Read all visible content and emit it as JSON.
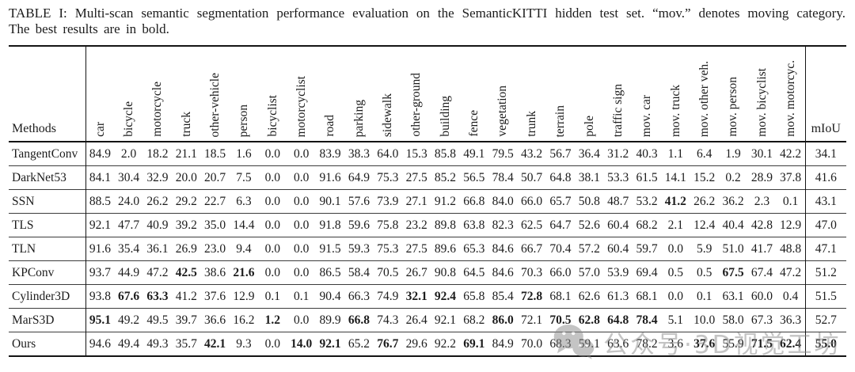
{
  "caption": {
    "line1": "TABLE I: Multi-scan semantic segmentation performance evaluation on the SemanticKITTI hidden test set. “mov.” denotes moving category.",
    "line2": "The best results are in bold."
  },
  "table": {
    "methods_header": "Methods",
    "miou_header": "mIoU",
    "columns": [
      "car",
      "bicycle",
      "motorcycle",
      "truck",
      "other-vehicle",
      "person",
      "bicyclist",
      "motorcyclist",
      "road",
      "parking",
      "sidewalk",
      "other-ground",
      "building",
      "fence",
      "vegetation",
      "trunk",
      "terrain",
      "pole",
      "traffic sign",
      "mov. car",
      "mov. truck",
      "mov. other veh.",
      "mov. person",
      "mov. bicyclist",
      "mov. motorcyc."
    ],
    "rows": [
      {
        "method": "TangentConv",
        "values": [
          "84.9",
          "2.0",
          "18.2",
          "21.1",
          "18.5",
          "1.6",
          "0.0",
          "0.0",
          "83.9",
          "38.3",
          "64.0",
          "15.3",
          "85.8",
          "49.1",
          "79.5",
          "43.2",
          "56.7",
          "36.4",
          "31.2",
          "40.3",
          "1.1",
          "6.4",
          "1.9",
          "30.1",
          "42.2"
        ],
        "bold": [],
        "miou": "34.1",
        "miou_bold": false
      },
      {
        "method": "DarkNet53",
        "values": [
          "84.1",
          "30.4",
          "32.9",
          "20.0",
          "20.7",
          "7.5",
          "0.0",
          "0.0",
          "91.6",
          "64.9",
          "75.3",
          "27.5",
          "85.2",
          "56.5",
          "78.4",
          "50.7",
          "64.8",
          "38.1",
          "53.3",
          "61.5",
          "14.1",
          "15.2",
          "0.2",
          "28.9",
          "37.8"
        ],
        "bold": [],
        "miou": "41.6",
        "miou_bold": false
      },
      {
        "method": "SSN",
        "values": [
          "88.5",
          "24.0",
          "26.2",
          "29.2",
          "22.7",
          "6.3",
          "0.0",
          "0.0",
          "90.1",
          "57.6",
          "73.9",
          "27.1",
          "91.2",
          "66.8",
          "84.0",
          "66.0",
          "65.7",
          "50.8",
          "48.7",
          "53.2",
          "41.2",
          "26.2",
          "36.2",
          "2.3",
          "0.1"
        ],
        "bold": [
          20
        ],
        "miou": "43.1",
        "miou_bold": false
      },
      {
        "method": "TLS",
        "values": [
          "92.1",
          "47.7",
          "40.9",
          "39.2",
          "35.0",
          "14.4",
          "0.0",
          "0.0",
          "91.8",
          "59.6",
          "75.8",
          "23.2",
          "89.8",
          "63.8",
          "82.3",
          "62.5",
          "64.7",
          "52.6",
          "60.4",
          "68.2",
          "2.1",
          "12.4",
          "40.4",
          "42.8",
          "12.9"
        ],
        "bold": [],
        "miou": "47.0",
        "miou_bold": false
      },
      {
        "method": "TLN",
        "values": [
          "91.6",
          "35.4",
          "36.1",
          "26.9",
          "23.0",
          "9.4",
          "0.0",
          "0.0",
          "91.5",
          "59.3",
          "75.3",
          "27.5",
          "89.6",
          "65.3",
          "84.6",
          "66.7",
          "70.4",
          "57.2",
          "60.4",
          "59.7",
          "0.0",
          "5.9",
          "51.0",
          "41.7",
          "48.8"
        ],
        "bold": [],
        "miou": "47.1",
        "miou_bold": false
      },
      {
        "method": "KPConv",
        "values": [
          "93.7",
          "44.9",
          "47.2",
          "42.5",
          "38.6",
          "21.6",
          "0.0",
          "0.0",
          "86.5",
          "58.4",
          "70.5",
          "26.7",
          "90.8",
          "64.5",
          "84.6",
          "70.3",
          "66.0",
          "57.0",
          "53.9",
          "69.4",
          "0.5",
          "0.5",
          "67.5",
          "67.4",
          "47.2"
        ],
        "bold": [
          3,
          5,
          22
        ],
        "miou": "51.2",
        "miou_bold": false
      },
      {
        "method": "Cylinder3D",
        "values": [
          "93.8",
          "67.6",
          "63.3",
          "41.2",
          "37.6",
          "12.9",
          "0.1",
          "0.1",
          "90.4",
          "66.3",
          "74.9",
          "32.1",
          "92.4",
          "65.8",
          "85.4",
          "72.8",
          "68.1",
          "62.6",
          "61.3",
          "68.1",
          "0.0",
          "0.1",
          "63.1",
          "60.0",
          "0.4"
        ],
        "bold": [
          1,
          2,
          11,
          12,
          15
        ],
        "miou": "51.5",
        "miou_bold": false
      },
      {
        "method": "MarS3D",
        "values": [
          "95.1",
          "49.2",
          "49.5",
          "39.7",
          "36.6",
          "16.2",
          "1.2",
          "0.0",
          "89.9",
          "66.8",
          "74.3",
          "26.4",
          "92.1",
          "68.2",
          "86.0",
          "72.1",
          "70.5",
          "62.8",
          "64.8",
          "78.4",
          "5.1",
          "10.0",
          "58.0",
          "67.3",
          "36.3"
        ],
        "bold": [
          0,
          6,
          9,
          14,
          16,
          17,
          18,
          19
        ],
        "miou": "52.7",
        "miou_bold": false
      },
      {
        "method": "Ours",
        "values": [
          "94.6",
          "49.4",
          "49.3",
          "35.7",
          "42.1",
          "9.3",
          "0.0",
          "14.0",
          "92.1",
          "65.2",
          "76.7",
          "29.6",
          "92.2",
          "69.1",
          "84.9",
          "70.0",
          "68.3",
          "59.1",
          "63.6",
          "78.2",
          "3.6",
          "37.6",
          "55.9",
          "71.5",
          "62.4"
        ],
        "bold": [
          4,
          7,
          8,
          10,
          13,
          21,
          23,
          24
        ],
        "miou": "55.0",
        "miou_bold": true
      }
    ]
  },
  "watermark": {
    "text": "公众号·3D视觉工坊",
    "icon": "wechat-icon",
    "color": "#8a8a8a"
  }
}
